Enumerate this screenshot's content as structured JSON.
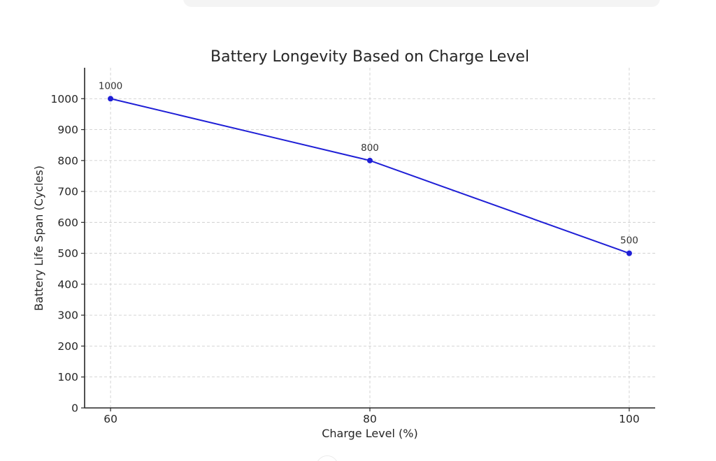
{
  "chart_data": {
    "type": "line",
    "title": "Battery Longevity Based on Charge Level",
    "xlabel": "Charge Level (%)",
    "ylabel": "Battery Life Span (Cycles)",
    "x": [
      60,
      80,
      100
    ],
    "series": [
      {
        "values": [
          1000,
          800,
          500
        ],
        "color": "#1f1fd6",
        "marker": "circle",
        "data_labels": [
          "1000",
          "800",
          "500"
        ]
      }
    ],
    "xlim": [
      58,
      102
    ],
    "ylim": [
      0,
      1100
    ],
    "x_ticks": [
      60,
      80,
      100
    ],
    "x_tick_labels": [
      "60",
      "80",
      "100"
    ],
    "y_ticks": [
      0,
      100,
      200,
      300,
      400,
      500,
      600,
      700,
      800,
      900,
      1000
    ],
    "y_tick_labels": [
      "0",
      "100",
      "200",
      "300",
      "400",
      "500",
      "600",
      "700",
      "800",
      "900",
      "1000"
    ],
    "grid": true,
    "grid_style": "dashed",
    "legend": "none"
  }
}
